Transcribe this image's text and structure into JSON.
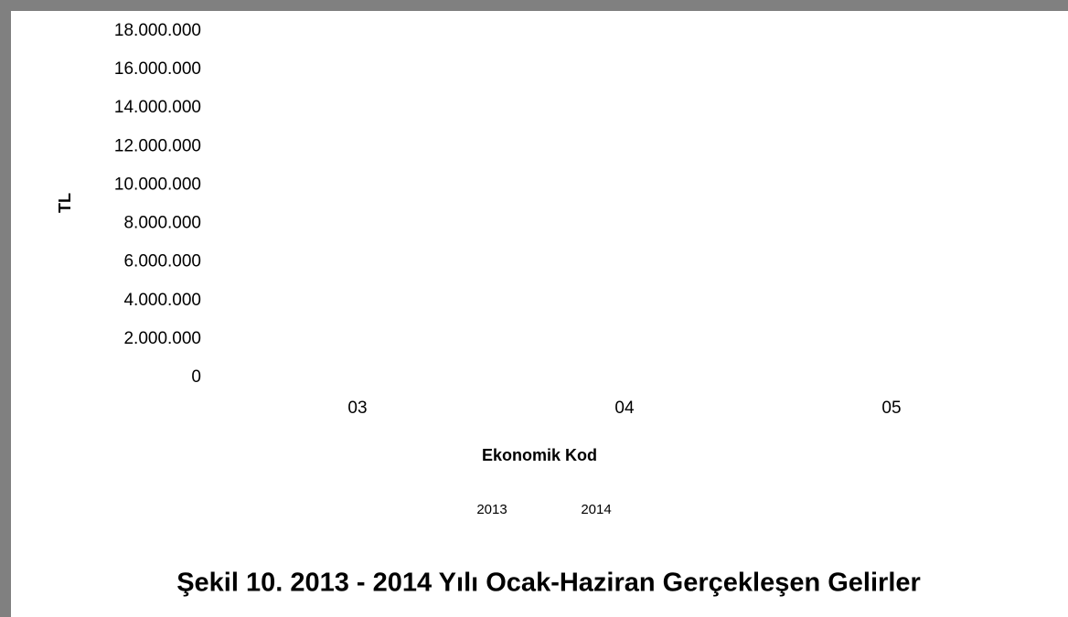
{
  "chart_data": {
    "type": "bar",
    "title": "Şekil 10. 2013 - 2014 Yılı Ocak-Haziran Gerçekleşen Gelirler",
    "x_label": "Ekonomik Kod",
    "y_label": "TL",
    "categories": [
      "03",
      "04",
      "05"
    ],
    "series": [
      {
        "name": "2013",
        "values": [
          null,
          null,
          null
        ]
      },
      {
        "name": "2014",
        "values": [
          null,
          null,
          null
        ]
      }
    ],
    "ylim": [
      0,
      18000000
    ],
    "yticks": [
      0,
      {
        "value": 2000000,
        "label": "2.000.000"
      },
      {
        "value": 4000000,
        "label": "4.000.000"
      },
      {
        "value": 6000000,
        "label": "6.000.000"
      },
      {
        "value": 8000000,
        "label": "8.000.000"
      },
      {
        "value": 10000000,
        "label": "10.000.000"
      },
      {
        "value": 12000000,
        "label": "12.000.000"
      },
      {
        "value": 14000000,
        "label": "14.000.000"
      },
      {
        "value": 16000000,
        "label": "16.000.000"
      },
      {
        "value": 18000000,
        "label": "18.000.000"
      }
    ],
    "grid": false
  }
}
